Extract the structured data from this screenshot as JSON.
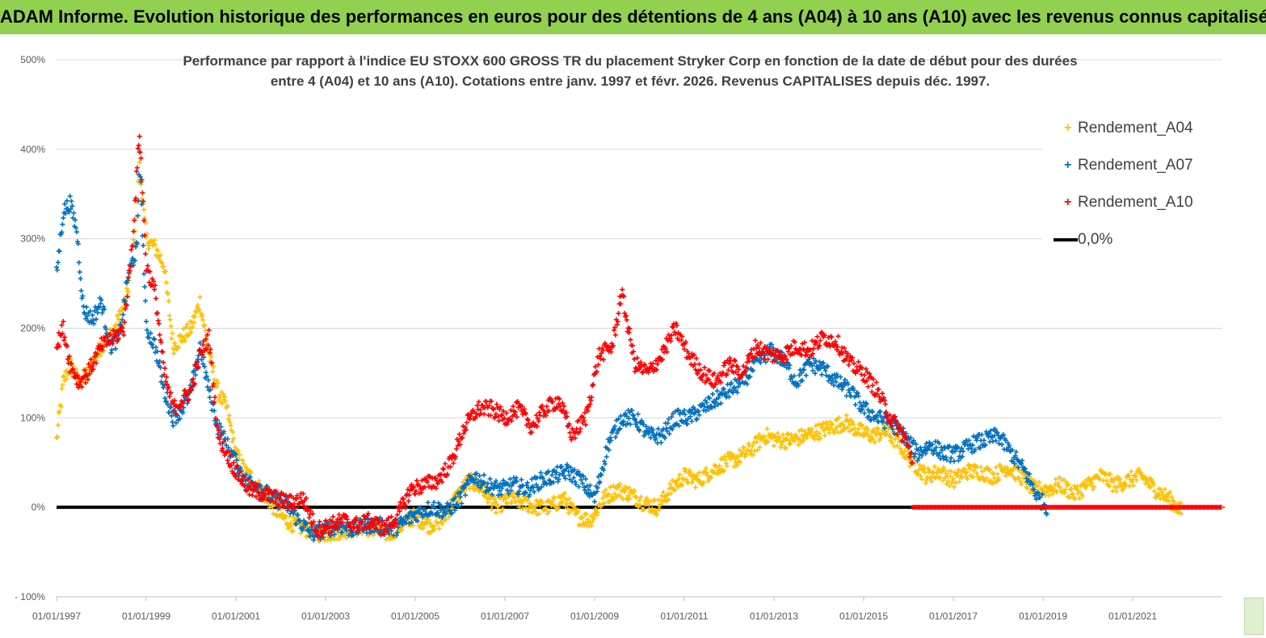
{
  "banner": {
    "title": "ADAM Informe. Evolution historique des performances en euros pour des détentions de 4 ans (A04) à 10 ans (A10) avec les revenus connus capitalisés"
  },
  "colors": {
    "banner_bg": "#92d050",
    "a04": "#ffc000",
    "a07": "#0070c0",
    "a10": "#ff0000",
    "zero_line": "#000000"
  },
  "legend": {
    "a04": "Rendement_A04",
    "a07": "Rendement_A07",
    "a10": "Rendement_A10",
    "zero": "0,0%"
  },
  "chart_data": {
    "type": "scatter",
    "title_line1": "Performance par rapport à l'indice EU STOXX 600 GROSS TR  du placement Stryker Corp en fonction de la date de début pour des durées",
    "title_line2": "entre 4 (A04) et 10 ans (A10). Cotations entre janv. 1997 et févr. 2026. Revenus CAPITALISES depuis déc. 1997.",
    "xlabel": "",
    "ylabel": "",
    "x_start_year": 1997.0,
    "x_end_year": 2023.0,
    "ylim": [
      -100,
      500
    ],
    "y_ticks": [
      -100,
      0,
      100,
      200,
      300,
      400,
      500
    ],
    "y_tick_labels": [
      "- 100%",
      "0%",
      "100%",
      "200%",
      "300%",
      "400%",
      "500%"
    ],
    "x_ticks": [
      1997,
      1999,
      2001,
      2003,
      2005,
      2007,
      2009,
      2011,
      2013,
      2015,
      2017,
      2019,
      2021
    ],
    "x_tick_labels": [
      "01/01/1997",
      "01/01/1999",
      "01/01/2001",
      "01/01/2003",
      "01/01/2005",
      "01/01/2007",
      "01/01/2009",
      "01/01/2011",
      "01/01/2013",
      "01/01/2015",
      "01/01/2017",
      "01/01/2019",
      "01/01/2021"
    ],
    "series": [
      {
        "name": "Rendement_A04",
        "color": "#ffc000",
        "x_end": 2022.1,
        "points": [
          [
            1997.0,
            75
          ],
          [
            1997.15,
            140
          ],
          [
            1997.3,
            160
          ],
          [
            1997.5,
            140
          ],
          [
            1997.7,
            150
          ],
          [
            1998.0,
            180
          ],
          [
            1998.3,
            200
          ],
          [
            1998.55,
            230
          ],
          [
            1998.7,
            280
          ],
          [
            1998.85,
            380
          ],
          [
            1999.0,
            300
          ],
          [
            1999.2,
            290
          ],
          [
            1999.4,
            270
          ],
          [
            1999.6,
            180
          ],
          [
            1999.8,
            190
          ],
          [
            2000.0,
            200
          ],
          [
            2000.2,
            230
          ],
          [
            2000.4,
            170
          ],
          [
            2000.6,
            130
          ],
          [
            2000.8,
            110
          ],
          [
            2001.0,
            60
          ],
          [
            2001.2,
            40
          ],
          [
            2001.4,
            30
          ],
          [
            2001.7,
            10
          ],
          [
            2002.0,
            -10
          ],
          [
            2002.3,
            -20
          ],
          [
            2002.6,
            -25
          ],
          [
            2002.9,
            -30
          ],
          [
            2003.2,
            -28
          ],
          [
            2003.5,
            -25
          ],
          [
            2003.8,
            -22
          ],
          [
            2004.1,
            -25
          ],
          [
            2004.4,
            -30
          ],
          [
            2004.7,
            -20
          ],
          [
            2005.0,
            -10
          ],
          [
            2005.3,
            -20
          ],
          [
            2005.6,
            -15
          ],
          [
            2005.9,
            10
          ],
          [
            2006.2,
            30
          ],
          [
            2006.5,
            20
          ],
          [
            2006.8,
            0
          ],
          [
            2007.1,
            10
          ],
          [
            2007.4,
            5
          ],
          [
            2007.7,
            0
          ],
          [
            2008.0,
            0
          ],
          [
            2008.3,
            10
          ],
          [
            2008.6,
            -10
          ],
          [
            2008.9,
            -15
          ],
          [
            2009.2,
            10
          ],
          [
            2009.5,
            20
          ],
          [
            2009.8,
            15
          ],
          [
            2010.1,
            5
          ],
          [
            2010.4,
            0
          ],
          [
            2010.7,
            20
          ],
          [
            2011.0,
            35
          ],
          [
            2011.3,
            30
          ],
          [
            2011.6,
            40
          ],
          [
            2011.9,
            50
          ],
          [
            2012.2,
            55
          ],
          [
            2012.5,
            65
          ],
          [
            2012.8,
            80
          ],
          [
            2013.1,
            75
          ],
          [
            2013.4,
            75
          ],
          [
            2013.7,
            80
          ],
          [
            2014.0,
            85
          ],
          [
            2014.3,
            90
          ],
          [
            2014.6,
            95
          ],
          [
            2014.9,
            85
          ],
          [
            2015.2,
            80
          ],
          [
            2015.5,
            85
          ],
          [
            2015.8,
            70
          ],
          [
            2016.1,
            50
          ],
          [
            2016.4,
            35
          ],
          [
            2016.7,
            40
          ],
          [
            2017.0,
            30
          ],
          [
            2017.3,
            40
          ],
          [
            2017.6,
            40
          ],
          [
            2017.9,
            35
          ],
          [
            2018.2,
            45
          ],
          [
            2018.5,
            35
          ],
          [
            2018.8,
            20
          ],
          [
            2019.1,
            20
          ],
          [
            2019.4,
            25
          ],
          [
            2019.7,
            15
          ],
          [
            2020.0,
            25
          ],
          [
            2020.3,
            35
          ],
          [
            2020.6,
            25
          ],
          [
            2020.9,
            30
          ],
          [
            2021.2,
            35
          ],
          [
            2021.5,
            20
          ],
          [
            2021.8,
            10
          ],
          [
            2022.1,
            -5
          ]
        ]
      },
      {
        "name": "Rendement_A07",
        "color": "#0070c0",
        "x_end": 2019.1,
        "points": [
          [
            1997.0,
            260
          ],
          [
            1997.15,
            330
          ],
          [
            1997.3,
            340
          ],
          [
            1997.45,
            310
          ],
          [
            1997.6,
            220
          ],
          [
            1997.8,
            210
          ],
          [
            1998.0,
            230
          ],
          [
            1998.2,
            180
          ],
          [
            1998.4,
            190
          ],
          [
            1998.6,
            260
          ],
          [
            1998.8,
            290
          ],
          [
            1998.85,
            400
          ],
          [
            1999.0,
            200
          ],
          [
            1999.2,
            180
          ],
          [
            1999.4,
            130
          ],
          [
            1999.6,
            100
          ],
          [
            1999.8,
            110
          ],
          [
            2000.0,
            130
          ],
          [
            2000.2,
            180
          ],
          [
            2000.4,
            130
          ],
          [
            2000.6,
            90
          ],
          [
            2000.8,
            70
          ],
          [
            2001.0,
            50
          ],
          [
            2001.2,
            30
          ],
          [
            2001.5,
            25
          ],
          [
            2001.8,
            10
          ],
          [
            2002.1,
            5
          ],
          [
            2002.4,
            -15
          ],
          [
            2002.7,
            -30
          ],
          [
            2003.0,
            -25
          ],
          [
            2003.3,
            -20
          ],
          [
            2003.6,
            -25
          ],
          [
            2003.9,
            -20
          ],
          [
            2004.2,
            -20
          ],
          [
            2004.5,
            -25
          ],
          [
            2004.8,
            -15
          ],
          [
            2005.1,
            -5
          ],
          [
            2005.4,
            0
          ],
          [
            2005.7,
            -5
          ],
          [
            2006.0,
            10
          ],
          [
            2006.3,
            35
          ],
          [
            2006.6,
            25
          ],
          [
            2006.9,
            20
          ],
          [
            2007.2,
            25
          ],
          [
            2007.5,
            20
          ],
          [
            2007.8,
            30
          ],
          [
            2008.1,
            35
          ],
          [
            2008.4,
            40
          ],
          [
            2008.7,
            30
          ],
          [
            2009.0,
            10
          ],
          [
            2009.3,
            70
          ],
          [
            2009.6,
            100
          ],
          [
            2009.9,
            100
          ],
          [
            2010.2,
            80
          ],
          [
            2010.5,
            80
          ],
          [
            2010.8,
            100
          ],
          [
            2011.1,
            100
          ],
          [
            2011.4,
            110
          ],
          [
            2011.7,
            120
          ],
          [
            2012.0,
            130
          ],
          [
            2012.3,
            140
          ],
          [
            2012.6,
            160
          ],
          [
            2012.9,
            175
          ],
          [
            2013.2,
            165
          ],
          [
            2013.5,
            140
          ],
          [
            2013.8,
            160
          ],
          [
            2014.1,
            155
          ],
          [
            2014.4,
            140
          ],
          [
            2014.7,
            130
          ],
          [
            2015.0,
            110
          ],
          [
            2015.3,
            100
          ],
          [
            2015.6,
            95
          ],
          [
            2015.9,
            80
          ],
          [
            2016.2,
            60
          ],
          [
            2016.5,
            70
          ],
          [
            2016.8,
            60
          ],
          [
            2017.1,
            60
          ],
          [
            2017.4,
            70
          ],
          [
            2017.7,
            75
          ],
          [
            2018.0,
            80
          ],
          [
            2018.3,
            60
          ],
          [
            2018.6,
            40
          ],
          [
            2018.9,
            10
          ],
          [
            2019.1,
            0
          ]
        ]
      },
      {
        "name": "Rendement_A10",
        "color": "#ff0000",
        "x_end": 2016.1,
        "points": [
          [
            1997.0,
            180
          ],
          [
            1997.15,
            200
          ],
          [
            1997.3,
            160
          ],
          [
            1997.5,
            140
          ],
          [
            1997.7,
            150
          ],
          [
            1998.0,
            180
          ],
          [
            1998.3,
            190
          ],
          [
            1998.5,
            200
          ],
          [
            1998.7,
            300
          ],
          [
            1998.85,
            420
          ],
          [
            1999.0,
            270
          ],
          [
            1999.2,
            240
          ],
          [
            1999.4,
            150
          ],
          [
            1999.6,
            110
          ],
          [
            1999.8,
            120
          ],
          [
            2000.0,
            130
          ],
          [
            2000.2,
            170
          ],
          [
            2000.4,
            190
          ],
          [
            2000.6,
            80
          ],
          [
            2000.8,
            60
          ],
          [
            2001.0,
            40
          ],
          [
            2001.3,
            20
          ],
          [
            2001.6,
            15
          ],
          [
            2001.9,
            10
          ],
          [
            2002.2,
            5
          ],
          [
            2002.5,
            10
          ],
          [
            2002.8,
            -25
          ],
          [
            2003.1,
            -20
          ],
          [
            2003.4,
            -15
          ],
          [
            2003.7,
            -20
          ],
          [
            2004.0,
            -15
          ],
          [
            2004.3,
            -25
          ],
          [
            2004.6,
            -10
          ],
          [
            2004.9,
            20
          ],
          [
            2005.2,
            25
          ],
          [
            2005.5,
            30
          ],
          [
            2005.8,
            50
          ],
          [
            2006.1,
            90
          ],
          [
            2006.4,
            110
          ],
          [
            2006.7,
            110
          ],
          [
            2007.0,
            100
          ],
          [
            2007.3,
            110
          ],
          [
            2007.6,
            90
          ],
          [
            2007.9,
            110
          ],
          [
            2008.2,
            120
          ],
          [
            2008.5,
            80
          ],
          [
            2008.8,
            100
          ],
          [
            2009.1,
            170
          ],
          [
            2009.4,
            180
          ],
          [
            2009.6,
            240
          ],
          [
            2009.9,
            160
          ],
          [
            2010.2,
            150
          ],
          [
            2010.5,
            170
          ],
          [
            2010.8,
            200
          ],
          [
            2011.1,
            170
          ],
          [
            2011.4,
            150
          ],
          [
            2011.7,
            140
          ],
          [
            2012.0,
            160
          ],
          [
            2012.3,
            150
          ],
          [
            2012.6,
            180
          ],
          [
            2012.9,
            170
          ],
          [
            2013.2,
            170
          ],
          [
            2013.5,
            180
          ],
          [
            2013.8,
            175
          ],
          [
            2014.1,
            190
          ],
          [
            2014.4,
            185
          ],
          [
            2014.7,
            160
          ],
          [
            2015.0,
            150
          ],
          [
            2015.3,
            130
          ],
          [
            2015.6,
            100
          ],
          [
            2015.9,
            80
          ],
          [
            2016.1,
            50
          ]
        ]
      }
    ],
    "a10_flat_zero_from": 2016.1,
    "a10_flat_zero_to": 2023.0,
    "zero_line_to": 2016.1
  }
}
